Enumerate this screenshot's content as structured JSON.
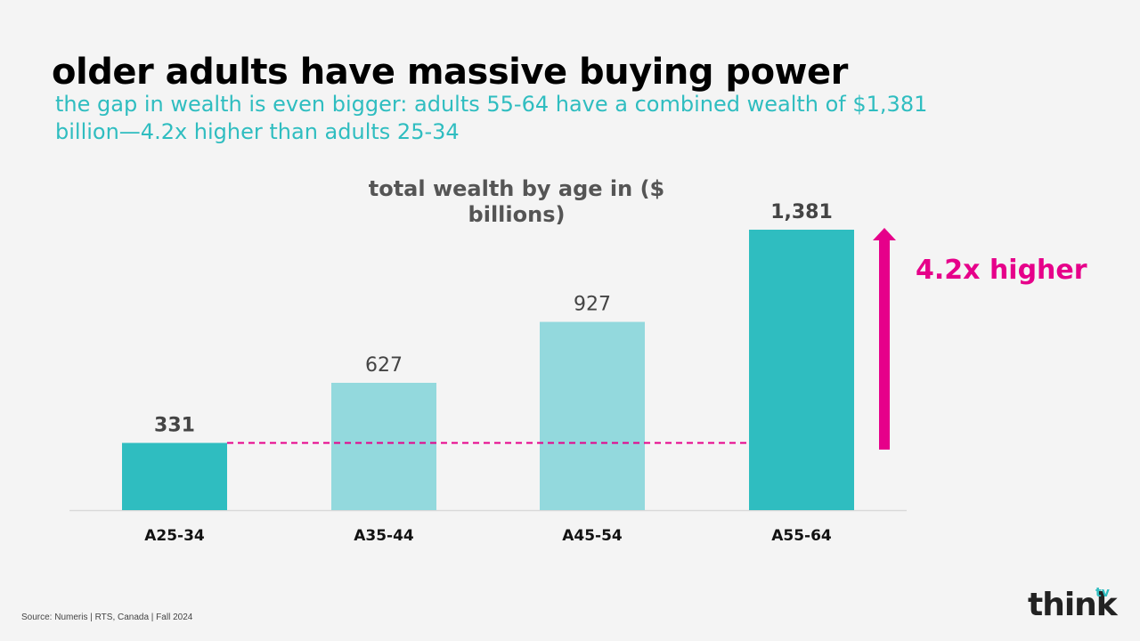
{
  "slide": {
    "title": "older adults have massive buying power",
    "subtitle": "the gap in wealth is even bigger: adults 55-64 have a combined wealth of $1,381 billion—4.2x higher than adults 25-34",
    "callout": "4.2x higher",
    "source": "Source: Numeris | RTS, Canada | Fall 2024",
    "logo": {
      "text": "think",
      "sup": "tv"
    }
  },
  "chart_data": {
    "type": "bar",
    "title": "total wealth by age in ($ billions)",
    "categories": [
      "A25-34",
      "A35-44",
      "A45-54",
      "A55-64"
    ],
    "values": [
      331,
      627,
      927,
      1381
    ],
    "value_labels": [
      "331",
      "627",
      "927",
      "1,381"
    ],
    "ylim": [
      0,
      1381
    ],
    "grid": false,
    "reference_line": {
      "value": 331,
      "style": "dashed"
    },
    "colors": {
      "highlight": "#2fbdc0",
      "muted": "#93d9dd",
      "accent": "#e6008a",
      "label": "#444444",
      "axis": "#d9d9d9"
    },
    "highlight_categories": [
      "A25-34",
      "A55-64"
    ]
  }
}
